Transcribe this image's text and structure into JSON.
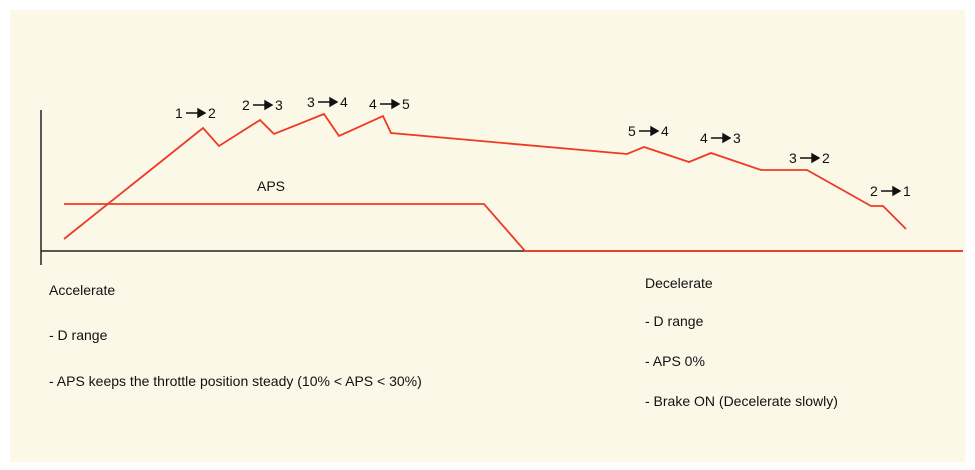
{
  "colors": {
    "background": "#fbf8e8",
    "line": "#ee3a24",
    "axis": "#222222",
    "text": "#111111"
  },
  "shift_labels": [
    {
      "from": "1",
      "to": "2"
    },
    {
      "from": "2",
      "to": "3"
    },
    {
      "from": "3",
      "to": "4"
    },
    {
      "from": "4",
      "to": "5"
    },
    {
      "from": "5",
      "to": "4"
    },
    {
      "from": "4",
      "to": "3"
    },
    {
      "from": "3",
      "to": "2"
    },
    {
      "from": "2",
      "to": "1"
    }
  ],
  "aps_label": "APS",
  "accelerate": {
    "title": "Accelerate",
    "items": [
      "- D range",
      "- APS keeps the throttle position steady (10% < APS < 30%)"
    ]
  },
  "decelerate": {
    "title": "Decelerate",
    "items": [
      "- D range",
      "- APS 0%",
      "- Brake ON (Decelerate slowly)"
    ]
  }
}
